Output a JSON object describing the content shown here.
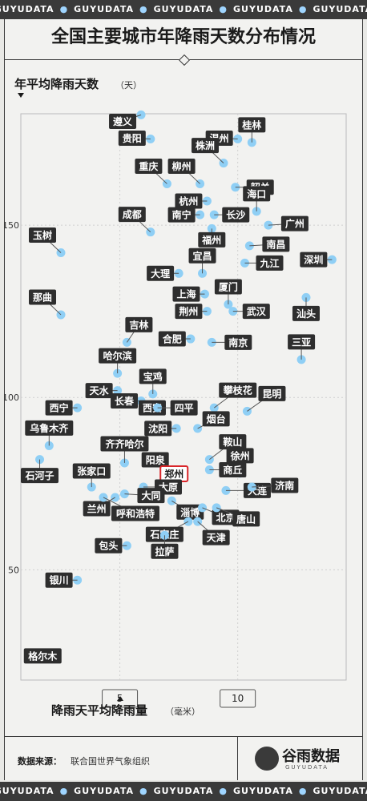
{
  "banner": [
    "GUYUDATA",
    "GUYUDATA",
    "GUYUDATA",
    "GUYUDATA",
    "GUYUDATA"
  ],
  "title": "全国主要城市年降雨天数分布情况",
  "colors": {
    "point": "#8fcff5",
    "label_bg": "#2e2e2e",
    "highlight": "#d9262a"
  },
  "source_label": "数据来源：",
  "source_value": "联合国世界气象组织",
  "logo_text": "谷雨数据",
  "logo_sub": "GUYUDATA",
  "chart_data": {
    "type": "scatter",
    "title": "全国主要城市年降雨天数分布情况",
    "ylabel": "年平均降雨天数",
    "ylabel_unit": "（天）",
    "xlabel": "降雨天平均降雨量",
    "xlabel_unit": "（毫米）",
    "xlim": [
      0.8,
      14.6
    ],
    "ylim": [
      18,
      180
    ],
    "x_ticks": [
      5,
      10
    ],
    "y_ticks": [
      50,
      100,
      150
    ],
    "highlight": "郑州",
    "points": [
      {
        "name": "遵义",
        "x": 5.9,
        "y": 182
      },
      {
        "name": "贵阳",
        "x": 6.3,
        "y": 175
      },
      {
        "name": "桂林",
        "x": 10.6,
        "y": 174
      },
      {
        "name": "温州",
        "x": 10.0,
        "y": 175
      },
      {
        "name": "株洲",
        "x": 9.4,
        "y": 168
      },
      {
        "name": "重庆",
        "x": 7.0,
        "y": 162
      },
      {
        "name": "柳州",
        "x": 8.4,
        "y": 162
      },
      {
        "name": "韶关",
        "x": 9.9,
        "y": 161
      },
      {
        "name": "杭州",
        "x": 8.7,
        "y": 157
      },
      {
        "name": "成都",
        "x": 6.3,
        "y": 148
      },
      {
        "name": "海口",
        "x": 10.8,
        "y": 154
      },
      {
        "name": "长沙",
        "x": 9.0,
        "y": 153
      },
      {
        "name": "南宁",
        "x": 8.4,
        "y": 153
      },
      {
        "name": "广州",
        "x": 11.3,
        "y": 150
      },
      {
        "name": "玉树",
        "x": 2.5,
        "y": 142
      },
      {
        "name": "福州",
        "x": 8.9,
        "y": 149
      },
      {
        "name": "南昌",
        "x": 10.5,
        "y": 144
      },
      {
        "name": "九江",
        "x": 10.3,
        "y": 139
      },
      {
        "name": "深圳",
        "x": 14.0,
        "y": 140
      },
      {
        "name": "宜昌",
        "x": 8.5,
        "y": 136
      },
      {
        "name": "大理",
        "x": 7.5,
        "y": 136
      },
      {
        "name": "上海",
        "x": 8.6,
        "y": 130
      },
      {
        "name": "厦门",
        "x": 9.6,
        "y": 127
      },
      {
        "name": "那曲",
        "x": 2.5,
        "y": 124
      },
      {
        "name": "汕头",
        "x": 12.9,
        "y": 129
      },
      {
        "name": "荆州",
        "x": 8.7,
        "y": 125
      },
      {
        "name": "武汉",
        "x": 9.8,
        "y": 125
      },
      {
        "name": "吉林",
        "x": 5.3,
        "y": 116
      },
      {
        "name": "合肥",
        "x": 8.0,
        "y": 117
      },
      {
        "name": "南京",
        "x": 8.9,
        "y": 116
      },
      {
        "name": "三亚",
        "x": 12.7,
        "y": 111
      },
      {
        "name": "哈尔滨",
        "x": 4.9,
        "y": 107
      },
      {
        "name": "宝鸡",
        "x": 6.4,
        "y": 101
      },
      {
        "name": "天水",
        "x": 4.9,
        "y": 102
      },
      {
        "name": "长春",
        "x": 5.9,
        "y": 99
      },
      {
        "name": "攀枝花",
        "x": 9.0,
        "y": 97
      },
      {
        "name": "昆明",
        "x": 10.4,
        "y": 96
      },
      {
        "name": "西宁",
        "x": 3.2,
        "y": 97
      },
      {
        "name": "西安",
        "x": 6.0,
        "y": 97
      },
      {
        "name": "四平",
        "x": 6.6,
        "y": 97
      },
      {
        "name": "乌鲁木齐",
        "x": 2.0,
        "y": 86
      },
      {
        "name": "沈阳",
        "x": 7.4,
        "y": 91
      },
      {
        "name": "烟台",
        "x": 8.3,
        "y": 91
      },
      {
        "name": "齐齐哈尔",
        "x": 5.2,
        "y": 81
      },
      {
        "name": "阳泉",
        "x": 6.5,
        "y": 81
      },
      {
        "name": "鞍山",
        "x": 8.8,
        "y": 82
      },
      {
        "name": "徐州",
        "x": 10.1,
        "y": 78
      },
      {
        "name": "石河子",
        "x": 1.6,
        "y": 82
      },
      {
        "name": "商丘",
        "x": 8.8,
        "y": 79
      },
      {
        "name": "张家口",
        "x": 3.8,
        "y": 74
      },
      {
        "name": "郑州",
        "x": 7.3,
        "y": 76
      },
      {
        "name": "大连",
        "x": 9.5,
        "y": 73
      },
      {
        "name": "济南",
        "x": 10.6,
        "y": 74
      },
      {
        "name": "兰州",
        "x": 4.8,
        "y": 71
      },
      {
        "name": "太原",
        "x": 6.0,
        "y": 74
      },
      {
        "name": "淄博",
        "x": 7.2,
        "y": 70
      },
      {
        "name": "北京",
        "x": 8.5,
        "y": 68
      },
      {
        "name": "大同",
        "x": 5.2,
        "y": 72
      },
      {
        "name": "唐山",
        "x": 9.1,
        "y": 68
      },
      {
        "name": "石家庄",
        "x": 7.9,
        "y": 64
      },
      {
        "name": "天津",
        "x": 8.3,
        "y": 64
      },
      {
        "name": "呼和浩特",
        "x": 4.3,
        "y": 71
      },
      {
        "name": "包头",
        "x": 5.3,
        "y": 57
      },
      {
        "name": "拉萨",
        "x": 6.9,
        "y": 60
      },
      {
        "name": "银川",
        "x": 3.2,
        "y": 47
      },
      {
        "name": "格尔木",
        "x": 1.2,
        "y": 25
      }
    ]
  }
}
